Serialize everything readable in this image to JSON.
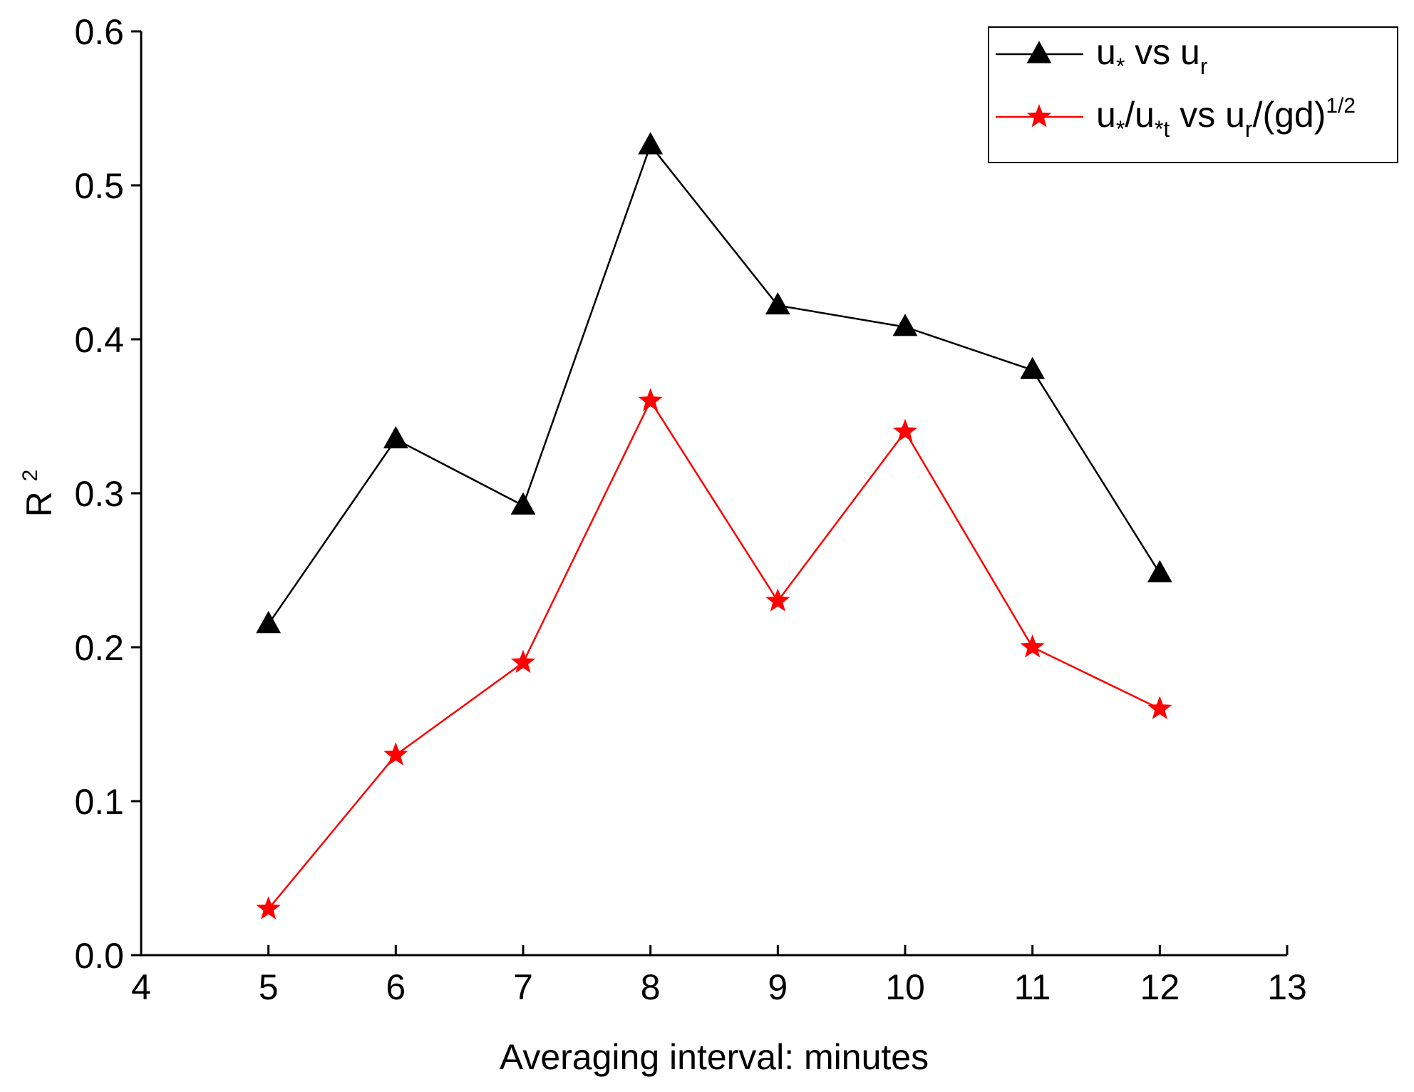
{
  "chart_data": {
    "type": "line",
    "title": "",
    "xlabel": "Averaging interval: minutes",
    "ylabel": {
      "base": "R",
      "sup": "2"
    },
    "xlim": [
      4,
      13
    ],
    "ylim": [
      0.0,
      0.6
    ],
    "xticks": [
      4,
      5,
      6,
      7,
      8,
      9,
      10,
      11,
      12,
      13
    ],
    "yticks": [
      0.0,
      0.1,
      0.2,
      0.3,
      0.4,
      0.5,
      0.6
    ],
    "ytick_labels": [
      "0.0",
      "0.1",
      "0.2",
      "0.3",
      "0.4",
      "0.5",
      "0.6"
    ],
    "grid": false,
    "legend_position": "top-right",
    "x": [
      5,
      6,
      7,
      8,
      9,
      10,
      11,
      12
    ],
    "series": [
      {
        "name": "u* vs ur",
        "color": "#000000",
        "marker": "triangle",
        "values": [
          0.215,
          0.335,
          0.292,
          0.526,
          0.422,
          0.408,
          0.38,
          0.248
        ],
        "legend_label": {
          "parts": [
            {
              "t": "u",
              "s": "n"
            },
            {
              "t": "*",
              "s": "sub"
            },
            {
              "t": " vs u",
              "s": "n"
            },
            {
              "t": "r",
              "s": "sub"
            }
          ]
        }
      },
      {
        "name": "u*/u*t vs ur/(gd)^1/2",
        "color": "#ff0000",
        "marker": "star",
        "values": [
          0.03,
          0.13,
          0.19,
          0.36,
          0.23,
          0.34,
          0.2,
          0.16
        ],
        "legend_label": {
          "parts": [
            {
              "t": "u",
              "s": "n"
            },
            {
              "t": "*",
              "s": "sub"
            },
            {
              "t": "/u",
              "s": "n"
            },
            {
              "t": "*t",
              "s": "sub"
            },
            {
              "t": " vs u",
              "s": "n"
            },
            {
              "t": "r",
              "s": "sub"
            },
            {
              "t": "/(gd)",
              "s": "n"
            },
            {
              "t": "1/2",
              "s": "sup"
            }
          ]
        }
      }
    ]
  }
}
